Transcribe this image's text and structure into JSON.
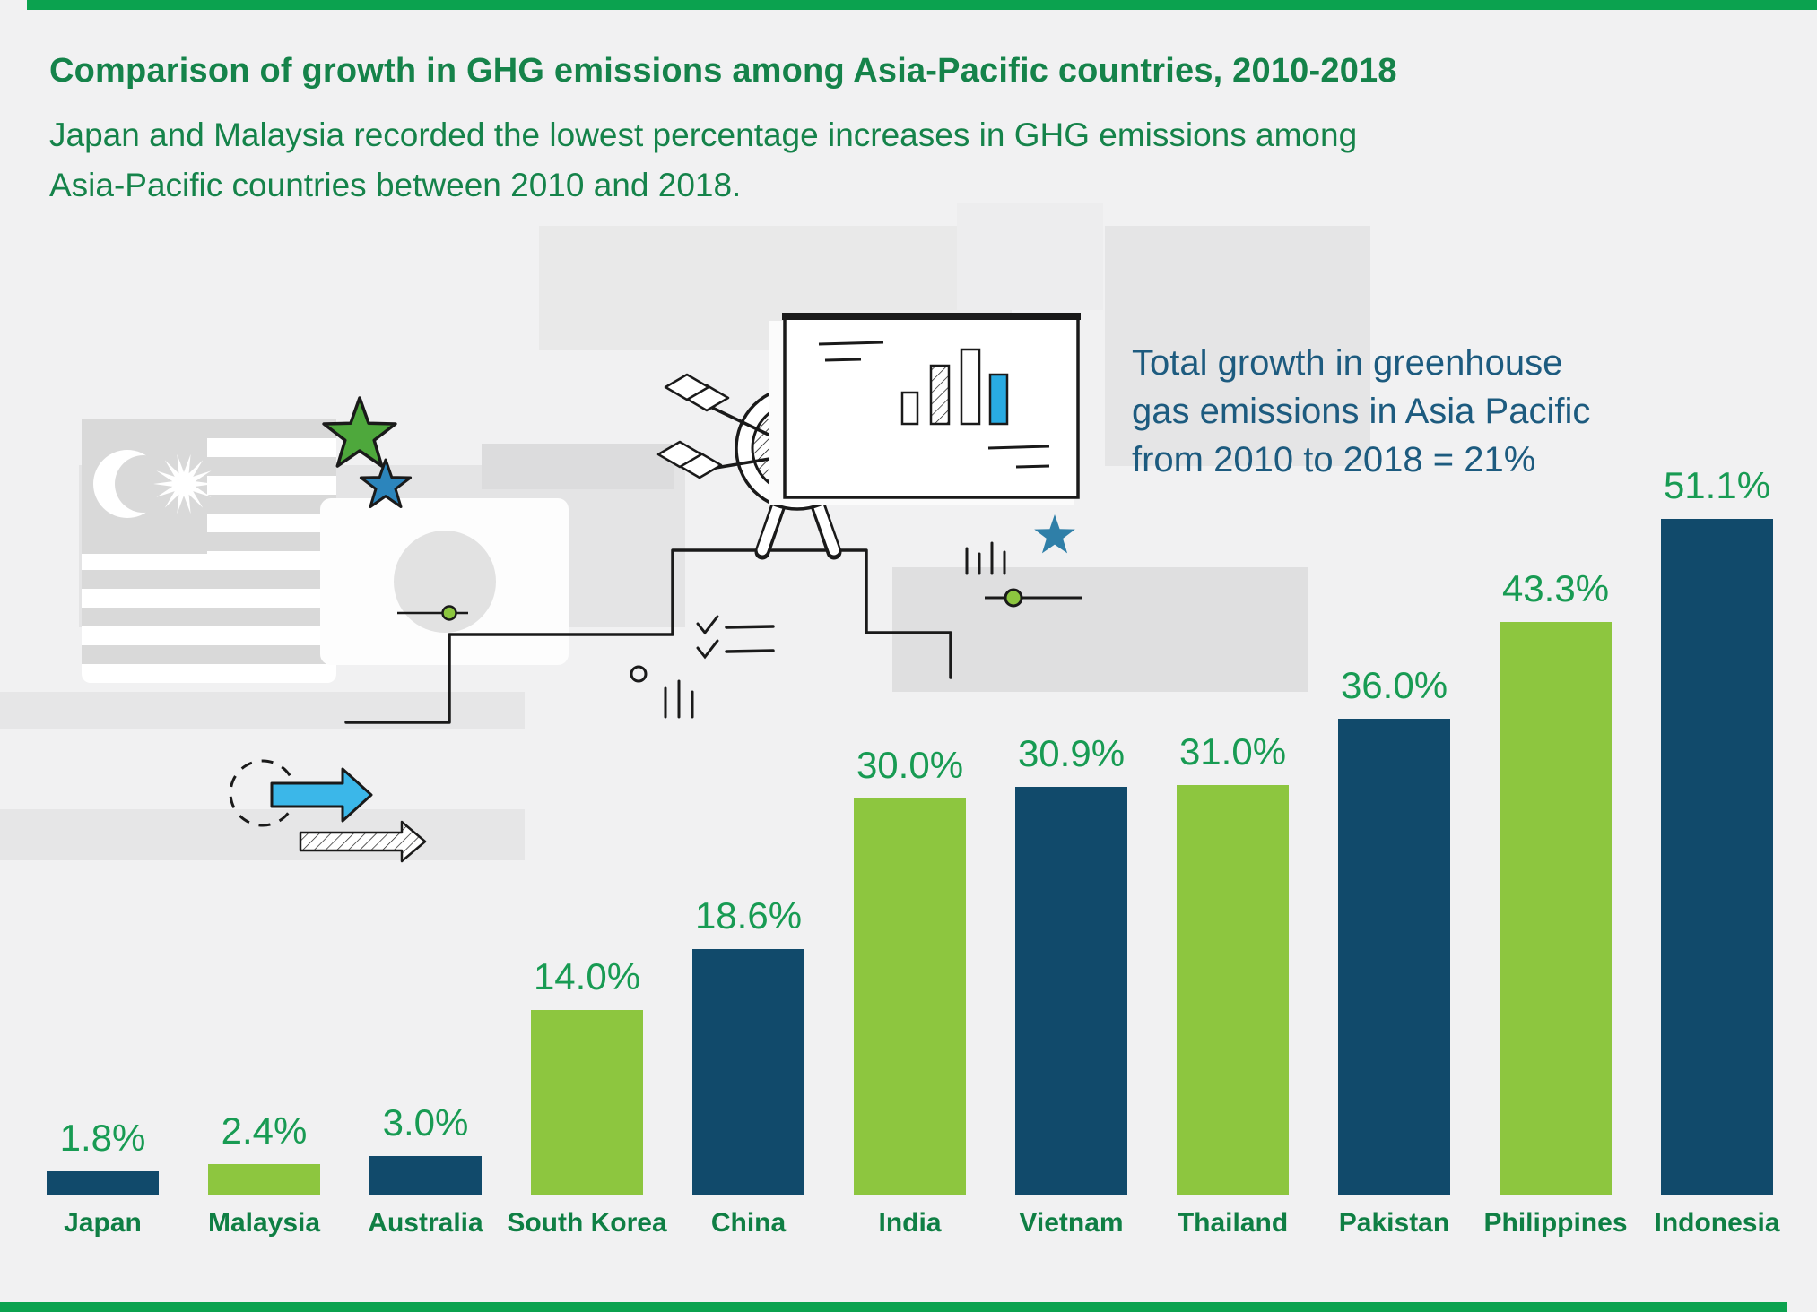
{
  "header": {
    "title": "Comparison of growth in GHG emissions among Asia-Pacific countries, 2010-2018",
    "subtitle_line1": "Japan and Malaysia recorded the lowest percentage increases in GHG emissions among",
    "subtitle_line2": "Asia-Pacific countries between 2010 and 2018."
  },
  "annotation": {
    "text": "Total growth in greenhouse gas emissions in Asia Pacific from 2010 to 2018 = 21%",
    "line1": "Total growth in greenhouse",
    "line2": "gas emissions in Asia Pacific",
    "line3": "from 2010 to 2018 = 21%"
  },
  "chart_data": {
    "type": "bar",
    "title": "Comparison of growth in GHG emissions among Asia-Pacific countries, 2010-2018",
    "categories": [
      "Japan",
      "Malaysia",
      "Australia",
      "South Korea",
      "China",
      "India",
      "Vietnam",
      "Thailand",
      "Pakistan",
      "Philippines",
      "Indonesia"
    ],
    "values": [
      1.8,
      2.4,
      3.0,
      14.0,
      18.6,
      30.0,
      30.9,
      31.0,
      36.0,
      43.3,
      51.1
    ],
    "value_labels": [
      "1.8%",
      "2.4%",
      "3.0%",
      "14.0%",
      "18.6%",
      "30.0%",
      "30.9%",
      "31.0%",
      "36.0%",
      "43.3%",
      "51.1%"
    ],
    "bar_colors": [
      "#114A6B",
      "#8DC63F",
      "#114A6B",
      "#8DC63F",
      "#114A6B",
      "#8DC63F",
      "#114A6B",
      "#8DC63F",
      "#114A6B",
      "#8DC63F",
      "#114A6B"
    ],
    "xlabel": "",
    "ylabel": "",
    "ylim": [
      0,
      55
    ],
    "grid": false,
    "axes_shown": false,
    "annotation": "Total growth in greenhouse gas emissions in Asia Pacific from 2010 to 2018 = 21%"
  },
  "colors": {
    "background": "#F1F1F2",
    "accent_strip_green": "#0BA24F",
    "bar_navy": "#114A6B",
    "bar_lime": "#8DC63F",
    "title_green": "#15834A",
    "value_label_green": "#189B53",
    "country_label_green": "#0F7F44",
    "annotation_blue": "#1D5B7F",
    "illustration_cyan": "#3BB7E9",
    "bullseye_green": "#7CBE3E"
  },
  "decor": {
    "items": [
      "malaysia-flag-icon",
      "japan-flag-icon",
      "green-star-icon",
      "blue-star-icon",
      "dartboard-target-icon",
      "whiteboard-chart-icon",
      "stairs-sketch",
      "slider-icon",
      "checklist-sketch",
      "tally-marks-sketch",
      "dashed-circle-icon",
      "cyan-arrow-icon",
      "hatched-arrow-icon"
    ]
  }
}
